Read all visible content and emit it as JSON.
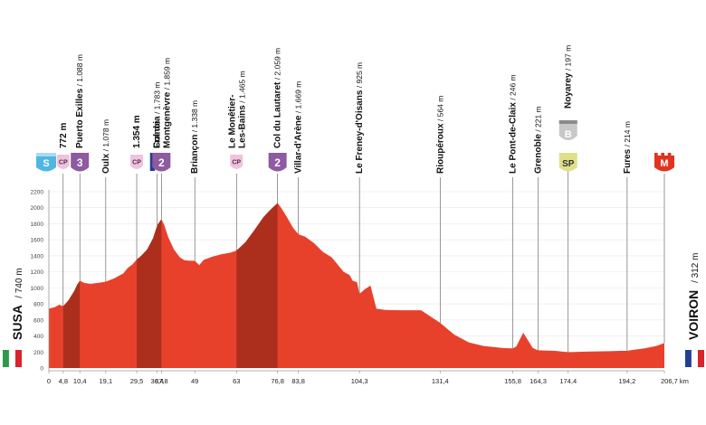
{
  "colors": {
    "profile_red": "#e8412b",
    "climb_dark": "#a52d1d",
    "cat_purple": "#8e5aa0",
    "cp_pink": "#eec4dc",
    "sprint_yellow": "#dfe08a",
    "start_blue": "#4fb6e3",
    "finish_red": "#e03420",
    "bonus_gray": "#c8c8c8",
    "axis": "#9a9a9a"
  },
  "chart_data": {
    "type": "area",
    "title": "",
    "xlabel": "",
    "ylabel": "",
    "x_unit": "km",
    "xlim": [
      0,
      206.7
    ],
    "ylim": [
      0,
      2200
    ],
    "y_ticks": [
      "0",
      "200",
      "400",
      "600",
      "800",
      "1000",
      "1200",
      "1400",
      "1600",
      "1800",
      "2000",
      "2200"
    ],
    "x_ticks": [
      "0",
      "4,8",
      "10,4",
      "19,1",
      "29,5",
      "36,4",
      "37,8",
      "49",
      "63",
      "76,8",
      "83,8",
      "104,3",
      "131,4",
      "155,8",
      "164,3",
      "174,4",
      "194,2",
      "206,7 km"
    ],
    "x_tick_values": [
      0,
      4.8,
      10.4,
      19.1,
      29.5,
      36.4,
      37.8,
      49,
      63,
      76.8,
      83.8,
      104.3,
      131.4,
      155.8,
      164.3,
      174.4,
      194.2,
      206.7
    ],
    "elevation_profile": {
      "x": [
        0,
        2,
        3.5,
        4.8,
        6.5,
        8.5,
        9.5,
        10.4,
        12,
        14,
        17,
        19.1,
        22,
        25,
        26.5,
        28,
        29.5,
        31,
        33,
        35,
        36.4,
        37.8,
        38.8,
        40,
        42,
        44,
        45.5,
        47,
        49,
        50.5,
        52,
        55,
        58,
        61,
        63,
        66,
        69,
        72,
        74,
        76.8,
        78,
        80,
        82,
        83.8,
        86,
        89,
        92,
        95,
        97,
        99,
        101,
        102,
        103.5,
        104.3,
        106,
        108,
        110,
        113,
        118,
        125,
        131.4,
        136,
        141,
        146,
        150,
        153,
        155.8,
        157,
        158,
        159.3,
        161,
        162.5,
        164.3,
        170,
        174.4,
        180,
        188,
        192,
        194.2,
        196,
        200,
        204,
        206.7
      ],
      "y": [
        740,
        760,
        790,
        772,
        840,
        960,
        1040,
        1088,
        1060,
        1050,
        1065,
        1078,
        1120,
        1180,
        1250,
        1290,
        1354,
        1400,
        1480,
        1620,
        1783,
        1859,
        1780,
        1640,
        1480,
        1380,
        1345,
        1340,
        1338,
        1285,
        1350,
        1390,
        1420,
        1440,
        1465,
        1570,
        1720,
        1880,
        1960,
        2059,
        2000,
        1880,
        1750,
        1669,
        1640,
        1560,
        1450,
        1380,
        1290,
        1200,
        1160,
        1090,
        1070,
        925,
        980,
        1030,
        740,
        725,
        720,
        720,
        564,
        420,
        320,
        275,
        260,
        248,
        246,
        270,
        345,
        440,
        340,
        250,
        221,
        215,
        197,
        205,
        210,
        214,
        214,
        225,
        245,
        275,
        312
      ]
    },
    "climbs": [
      {
        "from": 4.8,
        "to": 10.4
      },
      {
        "from": 29.5,
        "to": 37.8
      },
      {
        "from": 63,
        "to": 76.8
      }
    ]
  },
  "start": {
    "name": "SUSA",
    "alt": "740 m"
  },
  "finish": {
    "name": "VOIRON",
    "alt": "312 m"
  },
  "badge_labels": {
    "start": "S",
    "cp": "CP",
    "sp": "SP",
    "bonus": "B",
    "finish": "M",
    "cat3": "3",
    "cat2": "2"
  },
  "waypoints": [
    {
      "km": 4.8,
      "label": "772 m",
      "badge": "cp"
    },
    {
      "km": 10.4,
      "label": "Puerto Exilles",
      "alt": "1.088 m",
      "badge": "cat3"
    },
    {
      "km": 19.1,
      "label": "Oulx",
      "alt": "1.078 m",
      "badge": ""
    },
    {
      "km": 29.5,
      "label": "1.354 m",
      "badge": "cp"
    },
    {
      "km": 36.4,
      "label": "Francia",
      "alt": "1.783 m",
      "badge": "flag_fr"
    },
    {
      "km": 37.8,
      "label": "Col de",
      "label2": "Montgenèvre",
      "alt": "1.859 m",
      "badge": "cat2"
    },
    {
      "km": 49,
      "label": "Briançon",
      "alt": "1.338 m",
      "badge": ""
    },
    {
      "km": 63,
      "label": "Le Monêtier-",
      "label2": "Les-Bains",
      "alt": "1.465 m",
      "badge": "cp"
    },
    {
      "km": 76.8,
      "label": "Col du Lautaret",
      "alt": "2.059 m",
      "badge": "cat2"
    },
    {
      "km": 83.8,
      "label": "Villar-d'Arène",
      "alt": "1.669 m",
      "badge": ""
    },
    {
      "km": 104.3,
      "label": "Le Freney-d'Oisans",
      "alt": "925 m",
      "badge": ""
    },
    {
      "km": 131.4,
      "label": "Rioupéroux",
      "alt": "564 m",
      "badge": ""
    },
    {
      "km": 155.8,
      "label": "Le Pont-de-Claix",
      "alt": "246 m",
      "badge": ""
    },
    {
      "km": 164.3,
      "label": "Grenoble",
      "alt": "221 m",
      "badge": ""
    },
    {
      "km": 174.4,
      "label": "Noyarey",
      "alt": "197 m",
      "badge": "sp_bonus"
    },
    {
      "km": 194.2,
      "label": "Fures",
      "alt": "214 m",
      "badge": ""
    }
  ]
}
